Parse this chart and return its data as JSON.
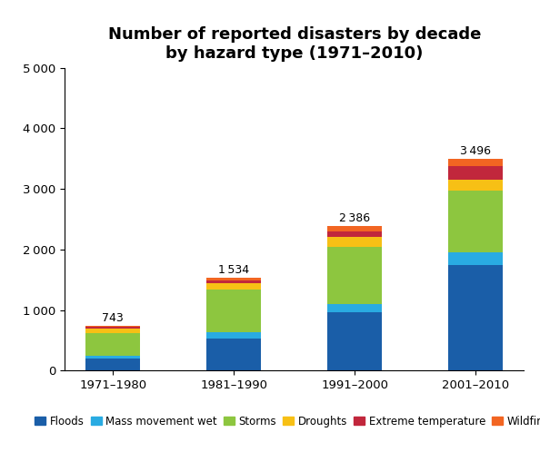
{
  "title_line1": "Number of reported disasters by decade",
  "title_line2": "by hazard type (1971–2010)",
  "categories": [
    "1971–1980",
    "1981–1990",
    "1991–2000",
    "2001–2010"
  ],
  "totals": [
    743,
    1534,
    2386,
    3496
  ],
  "series": {
    "Floods": [
      200,
      530,
      970,
      1750
    ],
    "Mass movement wet": [
      50,
      100,
      130,
      200
    ],
    "Storms": [
      370,
      710,
      950,
      1020
    ],
    "Droughts": [
      70,
      100,
      160,
      180
    ],
    "Extreme temperature": [
      30,
      55,
      90,
      230
    ],
    "Wildfires": [
      23,
      39,
      86,
      116
    ]
  },
  "colors": {
    "Floods": "#1a5ea8",
    "Mass movement wet": "#29abe2",
    "Storms": "#8dc63f",
    "Droughts": "#f7c015",
    "Extreme temperature": "#c1273c",
    "Wildfires": "#f26522"
  },
  "ylim": [
    0,
    5000
  ],
  "yticks": [
    0,
    1000,
    2000,
    3000,
    4000,
    5000
  ],
  "bar_width": 0.45,
  "background_color": "#ffffff",
  "title_fontsize": 13,
  "tick_fontsize": 9.5,
  "legend_fontsize": 8.5
}
